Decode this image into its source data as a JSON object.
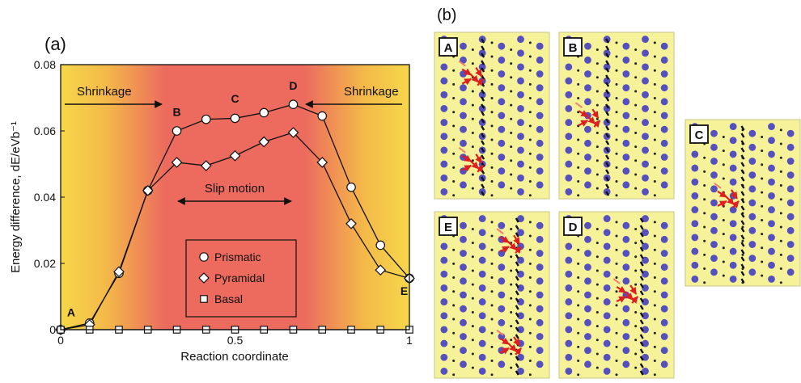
{
  "chart_data": {
    "type": "line",
    "panel_label": "(a)",
    "xlabel": "Reaction coordinate",
    "ylabel": "Energy difference, dE/eVb⁻¹",
    "xlim": [
      0,
      1
    ],
    "ylim": [
      0,
      0.08
    ],
    "xticks": [
      {
        "v": 0,
        "t": "0"
      },
      {
        "v": 0.5,
        "t": "0.5"
      },
      {
        "v": 1,
        "t": "1"
      }
    ],
    "yticks": [
      {
        "v": 0,
        "t": "0"
      },
      {
        "v": 0.02,
        "t": "0.02"
      },
      {
        "v": 0.04,
        "t": "0.04"
      },
      {
        "v": 0.06,
        "t": "0.06"
      },
      {
        "v": 0.08,
        "t": "0.08"
      }
    ],
    "series": [
      {
        "name": "Prismatic",
        "marker": "circle",
        "x": [
          0,
          0.083,
          0.167,
          0.25,
          0.333,
          0.417,
          0.5,
          0.583,
          0.667,
          0.75,
          0.833,
          0.917,
          1.0
        ],
        "y": [
          0,
          0.002,
          0.017,
          0.042,
          0.06,
          0.0635,
          0.0638,
          0.0655,
          0.068,
          0.0645,
          0.043,
          0.0255,
          0.0155
        ]
      },
      {
        "name": "Pyramidal",
        "marker": "diamond",
        "x": [
          0,
          0.083,
          0.167,
          0.25,
          0.333,
          0.417,
          0.5,
          0.583,
          0.667,
          0.75,
          0.833,
          0.917,
          1.0
        ],
        "y": [
          0,
          0.0015,
          0.0175,
          0.042,
          0.0505,
          0.0495,
          0.0525,
          0.0567,
          0.0595,
          0.0505,
          0.032,
          0.018,
          0.0155
        ]
      },
      {
        "name": "Basal",
        "marker": "square",
        "x": [
          0,
          0.083,
          0.167,
          0.25,
          0.333,
          0.417,
          0.5,
          0.583,
          0.667,
          0.75,
          0.833,
          0.917,
          1.0
        ],
        "y": [
          0,
          0,
          0,
          0,
          0,
          0,
          0,
          0,
          0,
          0,
          0,
          0,
          0
        ]
      }
    ],
    "point_labels": [
      {
        "text": "A",
        "x": 0.03,
        "y": 0.004
      },
      {
        "text": "B",
        "x": 0.333,
        "y": 0.0645
      },
      {
        "text": "C",
        "x": 0.5,
        "y": 0.0685
      },
      {
        "text": "D",
        "x": 0.667,
        "y": 0.0725
      },
      {
        "text": "E",
        "x": 0.985,
        "y": 0.0105
      }
    ],
    "annotations": {
      "shrink_left": "Shrinkage",
      "shrink_right": "Shrinkage",
      "slip": "Slip motion"
    },
    "legend_position": "bottom-center",
    "background": "gradient yellow → red → yellow"
  },
  "panel_b": {
    "label": "(b)",
    "panels": [
      {
        "id": "A",
        "arrows": "two clusters"
      },
      {
        "id": "B",
        "arrows": "one cluster"
      },
      {
        "id": "C",
        "arrows": "ring"
      },
      {
        "id": "E",
        "arrows": "two clusters"
      },
      {
        "id": "D",
        "arrows": "one cluster"
      }
    ],
    "colors": {
      "bg": "#f6f29a",
      "atom": "#5550bd",
      "arrow": "#dd1f1f",
      "faint_arrow": "#ee7d6e",
      "displacement": "#111111"
    }
  }
}
